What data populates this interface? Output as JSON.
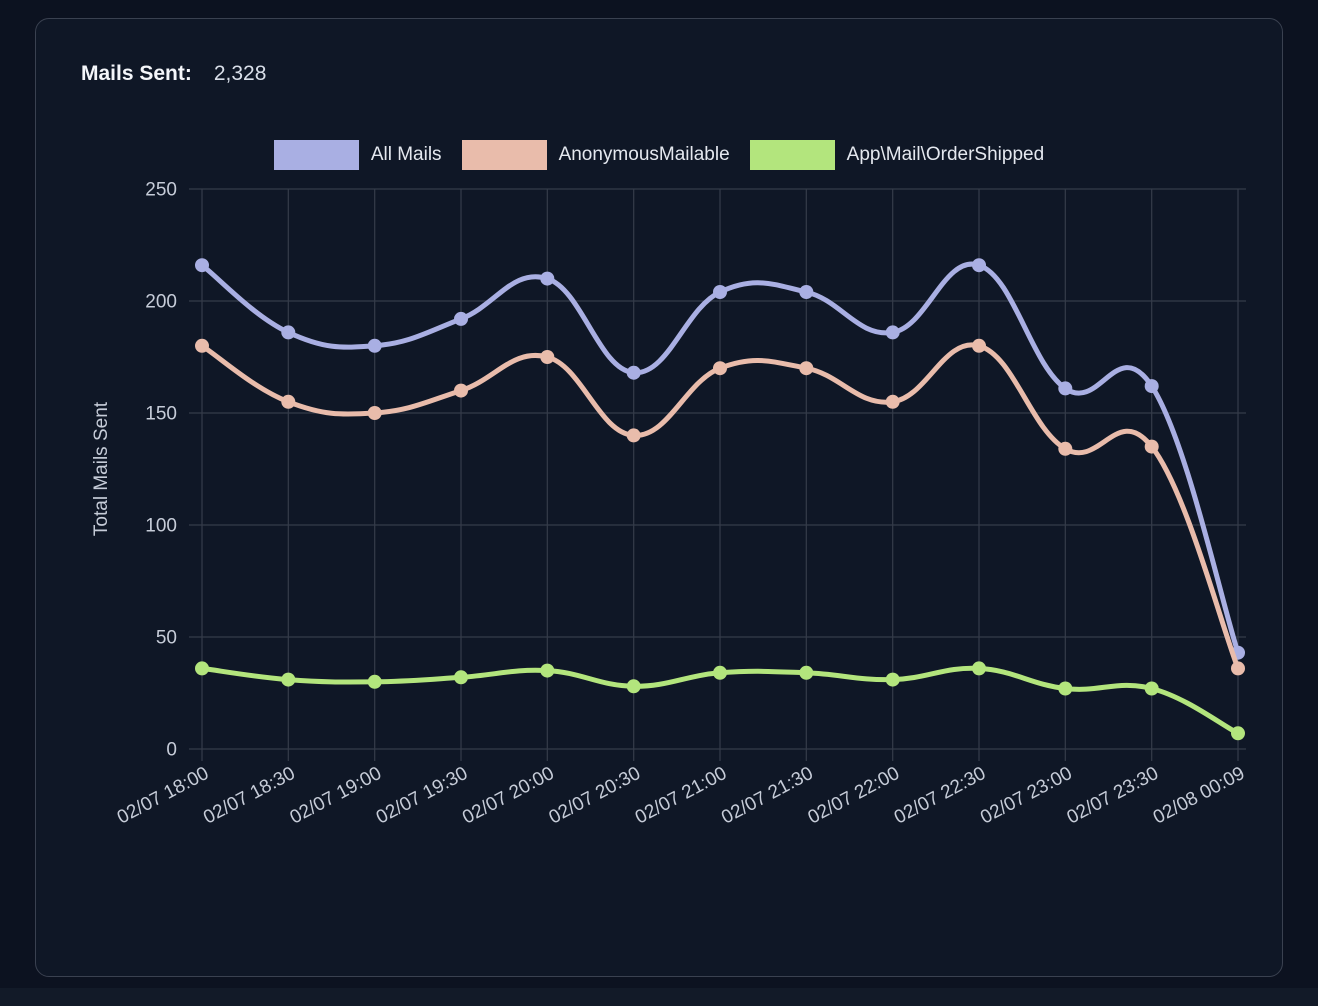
{
  "card": {
    "title_label": "Mails Sent:",
    "title_value": "2,328"
  },
  "chart_data": {
    "type": "line",
    "title": "Mails Sent: 2,328",
    "xlabel": "",
    "ylabel": "Total Mails Sent",
    "ylim": [
      0,
      250
    ],
    "yticks": [
      0,
      50,
      100,
      150,
      200,
      250
    ],
    "grid": true,
    "legend_position": "top",
    "point_style": "circle",
    "categories": [
      "02/07 18:00",
      "02/07 18:30",
      "02/07 19:00",
      "02/07 19:30",
      "02/07 20:00",
      "02/07 20:30",
      "02/07 21:00",
      "02/07 21:30",
      "02/07 22:00",
      "02/07 22:30",
      "02/07 23:00",
      "02/07 23:30",
      "02/08 00:09"
    ],
    "series": [
      {
        "name": "All Mails",
        "color": "#a9afe3",
        "values": [
          216,
          186,
          180,
          192,
          210,
          168,
          204,
          204,
          186,
          216,
          161,
          162,
          43
        ]
      },
      {
        "name": "AnonymousMailable",
        "color": "#e9bcab",
        "values": [
          180,
          155,
          150,
          160,
          175,
          140,
          170,
          170,
          155,
          180,
          134,
          135,
          36
        ]
      },
      {
        "name": "App\\Mail\\OrderShipped",
        "color": "#b3e57d",
        "values": [
          36,
          31,
          30,
          32,
          35,
          28,
          34,
          34,
          31,
          36,
          27,
          27,
          7
        ]
      }
    ]
  },
  "colors": {
    "background": "#0c1220",
    "card_background": "#0f1726",
    "card_border": "#3a4150",
    "gridline": "#353c4a",
    "tick_text": "#c6ccd8",
    "title_text": "#f4f6fa",
    "value_text": "#d9dfe9",
    "legend_text": "#e4e8ef"
  }
}
